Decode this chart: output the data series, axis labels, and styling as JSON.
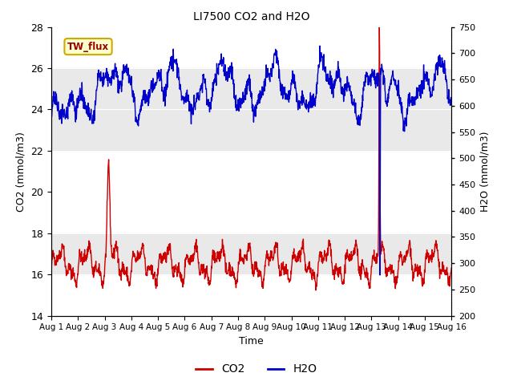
{
  "title": "LI7500 CO2 and H2O",
  "xlabel": "Time",
  "ylabel_left": "CO2 (mmol/m3)",
  "ylabel_right": "H2O (mmol/m3)",
  "xlim": [
    0,
    15
  ],
  "ylim_left": [
    14,
    28
  ],
  "ylim_right": [
    200,
    750
  ],
  "xtick_labels": [
    "Aug 1",
    "Aug 2",
    "Aug 3",
    "Aug 4",
    "Aug 5",
    "Aug 6",
    "Aug 7",
    "Aug 8",
    "Aug 9",
    "Aug 10",
    "Aug 11",
    "Aug 12",
    "Aug 13",
    "Aug 14",
    "Aug 15",
    "Aug 16"
  ],
  "yticks_left": [
    14,
    16,
    18,
    20,
    22,
    24,
    26,
    28
  ],
  "yticks_right": [
    200,
    250,
    300,
    350,
    400,
    450,
    500,
    550,
    600,
    650,
    700,
    750
  ],
  "legend_label_co2": "CO2",
  "legend_label_h2o": "H2O",
  "co2_color": "#cc0000",
  "h2o_color": "#0000cc",
  "annotation_label": "TW_flux",
  "bg_band1_ymin": 22,
  "bg_band1_ymax": 26,
  "bg_band2_ymin": 16,
  "bg_band2_ymax": 18,
  "background_color": "#ffffff",
  "plot_bg_color": "#ffffff",
  "gray_band_color": "#e0e0e0",
  "gray_band_alpha": 0.7
}
